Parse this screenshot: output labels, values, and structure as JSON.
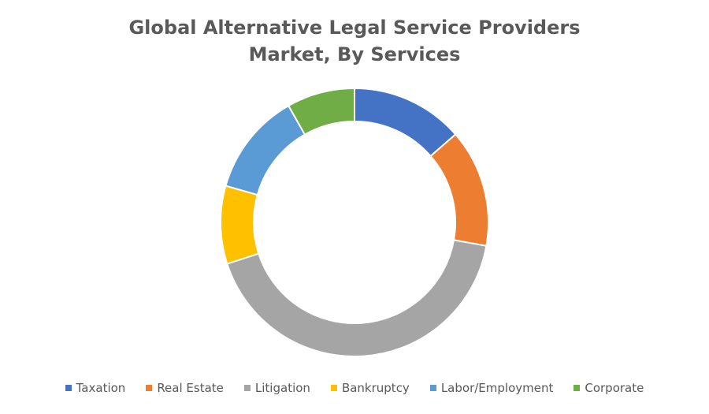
{
  "chart_data": {
    "type": "donut",
    "title": "Global Alternative Legal Service Providers Market, By Services",
    "categories": [
      "Taxation",
      "Real Estate",
      "Litigation",
      "Bankruptcy",
      "Labor/Employment",
      "Corporate"
    ],
    "values": [
      13.6,
      14.2,
      42.2,
      9.4,
      12.4,
      8.2
    ],
    "colors": [
      "#4472c4",
      "#ed7d31",
      "#a5a5a5",
      "#ffc000",
      "#5b9bd5",
      "#70ad47"
    ],
    "legend": "bottom"
  }
}
